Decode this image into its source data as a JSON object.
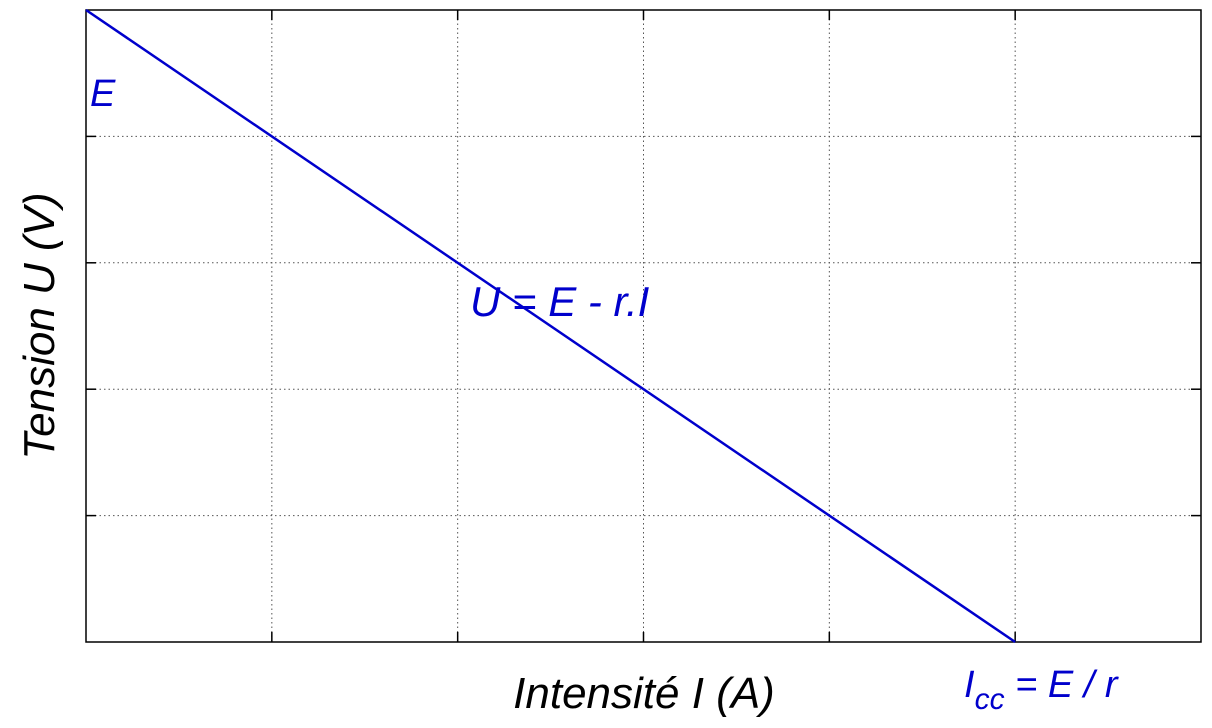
{
  "chart_data": {
    "type": "line",
    "xlabel": "Intensité I (A)",
    "ylabel": "Tension U (V)",
    "xlim": [
      0,
      6
    ],
    "ylim": [
      0,
      5
    ],
    "xticks": [
      0,
      1,
      2,
      3,
      4,
      5,
      6
    ],
    "yticks": [
      0,
      1,
      2,
      3,
      4,
      5
    ],
    "grid": true,
    "series": [
      {
        "x": [
          0,
          5
        ],
        "y": [
          5,
          0
        ],
        "color": "#0000cc"
      }
    ],
    "annotations": {
      "e_label": {
        "text": "E",
        "x": 0,
        "y": 5
      },
      "equation": {
        "text": "U = E - r.I",
        "x": 2.05,
        "y": 3.1
      },
      "icc_main": "I",
      "icc_sub": "cc",
      "icc_rest": " = E / r",
      "icc_x": 5
    },
    "colors": {
      "line": "#0000cc",
      "axis": "#000000",
      "grid": "#555555"
    }
  }
}
